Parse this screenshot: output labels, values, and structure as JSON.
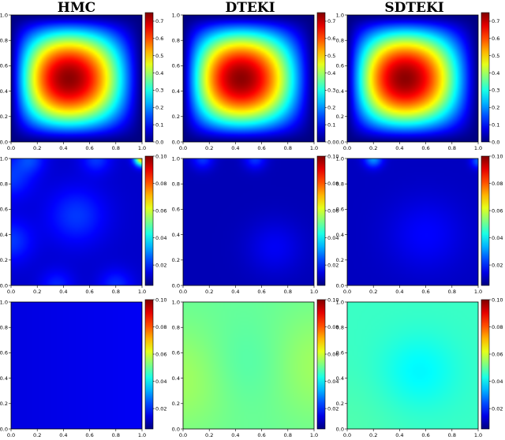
{
  "titles": [
    "HMC",
    "DTEKI",
    "SDTEKI"
  ],
  "chart_data": [
    {
      "type": "heatmap",
      "row": 0,
      "col": 0,
      "method": "HMC",
      "pattern": "mean",
      "xlim": [
        0,
        1
      ],
      "ylim": [
        0,
        1
      ],
      "x_ticks": [
        "0.0",
        "0.2",
        "0.4",
        "0.6",
        "0.8",
        "1.0"
      ],
      "y_ticks": [
        "0.0",
        "0.2",
        "0.4",
        "0.6",
        "0.8",
        "1.0"
      ],
      "colorbar": {
        "range": [
          0,
          0.75
        ],
        "ticks": [
          "0.0",
          "0.1",
          "0.2",
          "0.3",
          "0.4",
          "0.5",
          "0.6",
          "0.7"
        ]
      }
    },
    {
      "type": "heatmap",
      "row": 0,
      "col": 1,
      "method": "DTEKI",
      "pattern": "mean",
      "xlim": [
        0,
        1
      ],
      "ylim": [
        0,
        1
      ],
      "x_ticks": [
        "0.0",
        "0.2",
        "0.4",
        "0.6",
        "0.8",
        "1.0"
      ],
      "y_ticks": [
        "0.0",
        "0.2",
        "0.4",
        "0.6",
        "0.8",
        "1.0"
      ],
      "colorbar": {
        "range": [
          0,
          0.75
        ],
        "ticks": [
          "0.0",
          "0.1",
          "0.2",
          "0.3",
          "0.4",
          "0.5",
          "0.6",
          "0.7"
        ]
      }
    },
    {
      "type": "heatmap",
      "row": 0,
      "col": 2,
      "method": "SDTEKI",
      "pattern": "mean",
      "xlim": [
        0,
        1
      ],
      "ylim": [
        0,
        1
      ],
      "x_ticks": [
        "0.0",
        "0.2",
        "0.4",
        "0.6",
        "0.8",
        "1.0"
      ],
      "y_ticks": [
        "0.0",
        "0.2",
        "0.4",
        "0.6",
        "0.8",
        "1.0"
      ],
      "colorbar": {
        "range": [
          0,
          0.75
        ],
        "ticks": [
          "0.0",
          "0.1",
          "0.2",
          "0.3",
          "0.4",
          "0.5",
          "0.6",
          "0.7"
        ]
      }
    },
    {
      "type": "heatmap",
      "row": 1,
      "col": 0,
      "method": "HMC",
      "pattern": "std-hmc",
      "xlim": [
        0,
        1
      ],
      "ylim": [
        0,
        1
      ],
      "x_ticks": [
        "0.0",
        "0.2",
        "0.4",
        "0.6",
        "0.8",
        "1.0"
      ],
      "y_ticks": [
        "0.0",
        "0.2",
        "0.4",
        "0.6",
        "0.8",
        "1.0"
      ],
      "colorbar": {
        "range": [
          0.005,
          0.1
        ],
        "ticks": [
          "0.02",
          "0.04",
          "0.06",
          "0.08",
          "0.10"
        ]
      }
    },
    {
      "type": "heatmap",
      "row": 1,
      "col": 1,
      "method": "DTEKI",
      "pattern": "std-dteki",
      "xlim": [
        0,
        1
      ],
      "ylim": [
        0,
        1
      ],
      "x_ticks": [
        "0.0",
        "0.2",
        "0.4",
        "0.6",
        "0.8",
        "1.0"
      ],
      "y_ticks": [
        "0.0",
        "0.2",
        "0.4",
        "0.6",
        "0.8",
        "1.0"
      ],
      "colorbar": {
        "range": [
          0.005,
          0.1
        ],
        "ticks": [
          "0.02",
          "0.04",
          "0.06",
          "0.08",
          "0.10"
        ]
      }
    },
    {
      "type": "heatmap",
      "row": 1,
      "col": 2,
      "method": "SDTEKI",
      "pattern": "std-sdteki",
      "xlim": [
        0,
        1
      ],
      "ylim": [
        0,
        1
      ],
      "x_ticks": [
        "0.0",
        "0.2",
        "0.4",
        "0.6",
        "0.8",
        "1.0"
      ],
      "y_ticks": [
        "0.0",
        "0.2",
        "0.4",
        "0.6",
        "0.8",
        "1.0"
      ],
      "colorbar": {
        "range": [
          0.005,
          0.1
        ],
        "ticks": [
          "0.02",
          "0.04",
          "0.06",
          "0.08",
          "0.10"
        ]
      }
    },
    {
      "type": "heatmap",
      "row": 2,
      "col": 0,
      "method": "HMC",
      "pattern": "err-hmc",
      "xlim": [
        0,
        1
      ],
      "ylim": [
        0,
        1
      ],
      "x_ticks": [
        "0.0",
        "0.2",
        "0.4",
        "0.6",
        "0.8",
        "1.0"
      ],
      "y_ticks": [
        "0.0",
        "0.2",
        "0.4",
        "0.6",
        "0.8",
        "1.0"
      ],
      "colorbar": {
        "range": [
          0.005,
          0.1
        ],
        "ticks": [
          "0.02",
          "0.04",
          "0.06",
          "0.08",
          "0.10"
        ]
      }
    },
    {
      "type": "heatmap",
      "row": 2,
      "col": 1,
      "method": "DTEKI",
      "pattern": "err-dteki",
      "xlim": [
        0,
        1
      ],
      "ylim": [
        0,
        1
      ],
      "x_ticks": [
        "0.0",
        "0.2",
        "0.4",
        "0.6",
        "0.8",
        "1.0"
      ],
      "y_ticks": [
        "0.0",
        "0.2",
        "0.4",
        "0.6",
        "0.8",
        "1.0"
      ],
      "colorbar": {
        "range": [
          0.005,
          0.1
        ],
        "ticks": [
          "0.02",
          "0.04",
          "0.06",
          "0.08",
          "0.10"
        ]
      }
    },
    {
      "type": "heatmap",
      "row": 2,
      "col": 2,
      "method": "SDTEKI",
      "pattern": "err-sdteki",
      "xlim": [
        0,
        1
      ],
      "ylim": [
        0,
        1
      ],
      "x_ticks": [
        "0.0",
        "0.2",
        "0.4",
        "0.6",
        "0.8",
        "1.0"
      ],
      "y_ticks": [
        "0.0",
        "0.2",
        "0.4",
        "0.6",
        "0.8",
        "1.0"
      ],
      "colorbar": {
        "range": [
          0.005,
          0.1
        ],
        "ticks": [
          "0.02",
          "0.04",
          "0.06",
          "0.08",
          "0.10"
        ]
      }
    }
  ],
  "colormap": "jet"
}
